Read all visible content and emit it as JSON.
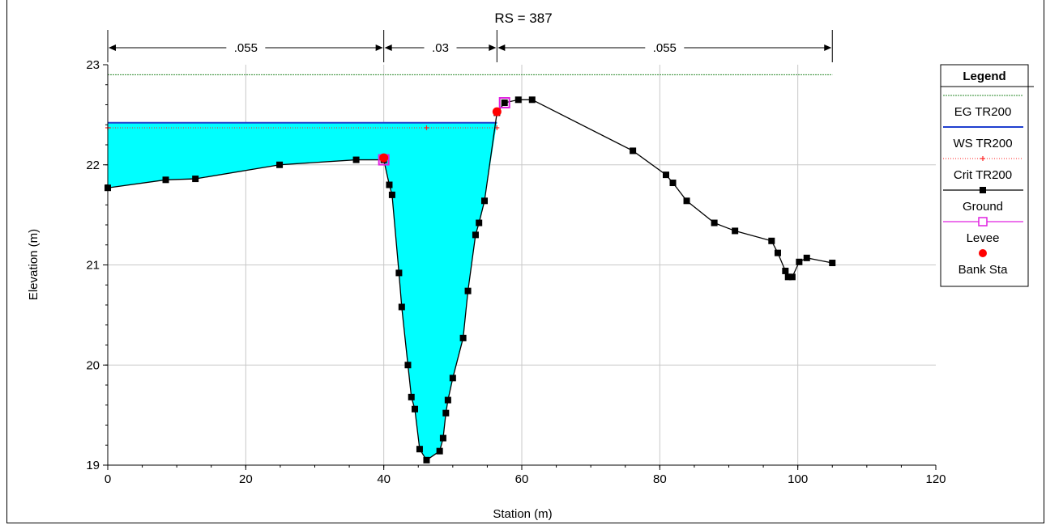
{
  "chart_data": {
    "type": "line",
    "title": "RS = 387",
    "xlabel": "Station (m)",
    "ylabel": "Elevation (m)",
    "xlim": [
      0,
      120
    ],
    "ylim": [
      19,
      23
    ],
    "x_ticks": [
      "0",
      "20",
      "40",
      "60",
      "80",
      "100",
      "120"
    ],
    "y_ticks": [
      "19",
      "20",
      "21",
      "22",
      "23"
    ],
    "grid": true,
    "legend_position": "right",
    "legend_title": "Legend",
    "mannings": [
      {
        "label": ".055",
        "from": 0,
        "to": 40
      },
      {
        "label": ".03",
        "from": 40,
        "to": 56.4
      },
      {
        "label": ".055",
        "from": 56.4,
        "to": 105
      }
    ],
    "series": [
      {
        "name": "EG TR200",
        "color": "#2e8b2e",
        "style": "dashed",
        "x": [
          0,
          105
        ],
        "y": [
          22.9,
          22.9
        ]
      },
      {
        "name": "WS TR200",
        "color": "#1f3fcf",
        "style": "solid",
        "x": [
          0,
          56.4
        ],
        "y": [
          22.42,
          22.42
        ]
      },
      {
        "name": "Crit TR200",
        "color": "#ff2020",
        "style": "dotted-plus",
        "x": [
          0,
          46.2,
          56.4
        ],
        "y": [
          22.37,
          22.37,
          22.37
        ]
      },
      {
        "name": "Ground",
        "color": "#000000",
        "style": "line-square",
        "x": [
          0,
          8.4,
          12.7,
          24.9,
          36,
          40,
          40.8,
          41.2,
          42.2,
          42.6,
          43.5,
          44,
          44.5,
          45.2,
          46.2,
          48.1,
          48.6,
          49,
          49.3,
          50,
          51.5,
          52.2,
          53.3,
          53.8,
          54.6,
          56.4,
          57.5,
          59.5,
          61.5,
          76.1,
          80.9,
          81.9,
          83.9,
          87.9,
          90.9,
          96.2,
          97.1,
          98.2,
          98.6,
          99.2,
          100.2,
          101.3,
          105
        ],
        "y": [
          21.77,
          21.85,
          21.86,
          22.0,
          22.05,
          22.05,
          21.8,
          21.7,
          20.92,
          20.58,
          20.0,
          19.68,
          19.56,
          19.16,
          19.05,
          19.14,
          19.27,
          19.52,
          19.65,
          19.87,
          20.27,
          20.74,
          21.3,
          21.42,
          21.64,
          22.52,
          22.62,
          22.65,
          22.65,
          22.14,
          21.9,
          21.82,
          21.64,
          21.42,
          21.34,
          21.24,
          21.12,
          20.94,
          20.88,
          20.88,
          21.03,
          21.07,
          21.02
        ]
      },
      {
        "name": "Levee",
        "color": "#e020e0",
        "style": "open-square",
        "x": [
          40,
          57.5
        ],
        "y": [
          22.05,
          22.62
        ]
      },
      {
        "name": "Bank Sta",
        "color": "#ff0000",
        "style": "dot",
        "x": [
          40,
          56.4
        ],
        "y": [
          22.07,
          22.53
        ]
      }
    ]
  }
}
